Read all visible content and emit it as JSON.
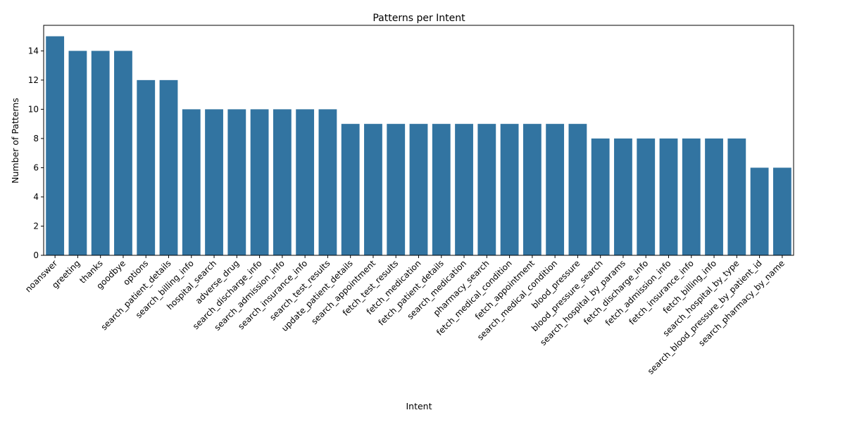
{
  "chart_data": {
    "type": "bar",
    "title": "Patterns per Intent",
    "xlabel": "Intent",
    "ylabel": "Number of Patterns",
    "ylim": [
      0,
      15.75
    ],
    "yticks": [
      0,
      2,
      4,
      6,
      8,
      10,
      12,
      14
    ],
    "grid": false,
    "bar_color": "#3274a1",
    "categories": [
      "noanswer",
      "greeting",
      "thanks",
      "goodbye",
      "options",
      "search_patient_details",
      "search_billing_info",
      "hospital_search",
      "adverse_drug",
      "search_discharge_info",
      "search_admission_info",
      "search_insurance_info",
      "search_test_results",
      "update_patient_details",
      "search_appointment",
      "fetch_test_results",
      "fetch_medication",
      "fetch_patient_details",
      "search_medication",
      "pharmacy_search",
      "fetch_medical_condition",
      "fetch_appointment",
      "search_medical_condition",
      "blood_pressure",
      "blood_pressure_search",
      "search_hospital_by_params",
      "fetch_discharge_info",
      "fetch_admission_info",
      "fetch_insurance_info",
      "fetch_billing_info",
      "search_hospital_by_type",
      "search_blood_pressure_by_patient_id",
      "search_pharmacy_by_name"
    ],
    "values": [
      15,
      14,
      14,
      14,
      12,
      12,
      10,
      10,
      10,
      10,
      10,
      10,
      10,
      9,
      9,
      9,
      9,
      9,
      9,
      9,
      9,
      9,
      9,
      9,
      8,
      8,
      8,
      8,
      8,
      8,
      8,
      6,
      6
    ]
  }
}
